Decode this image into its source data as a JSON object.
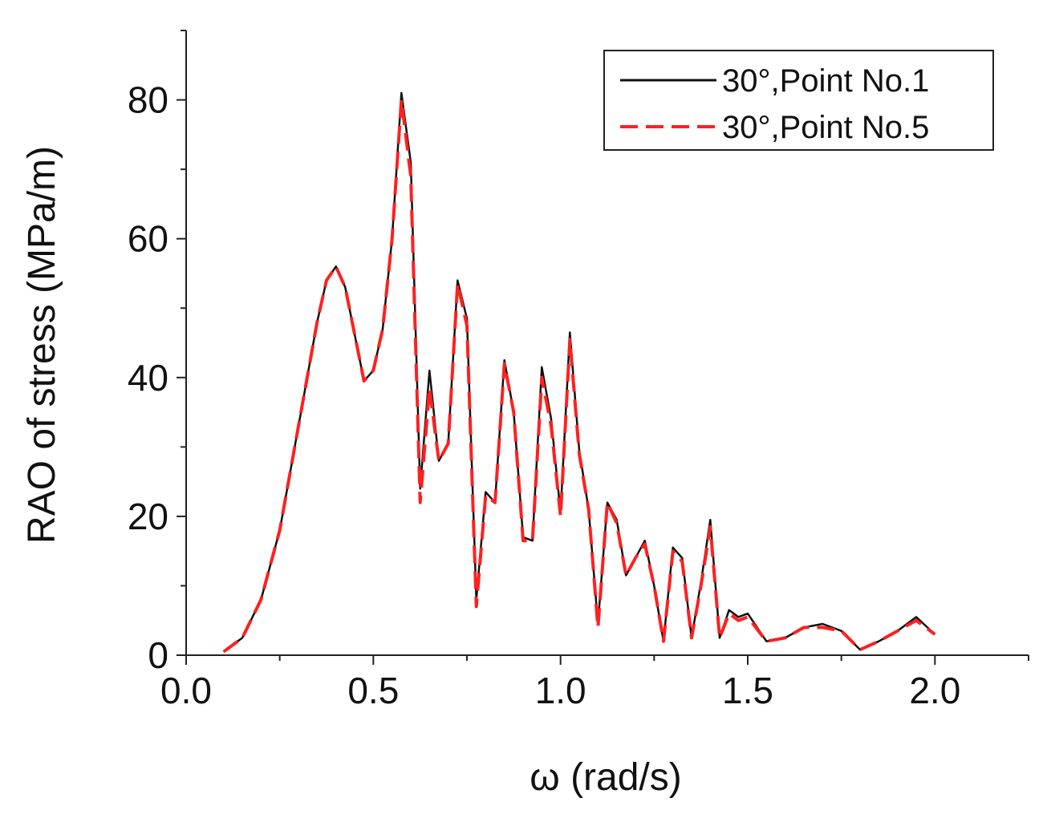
{
  "chart_data": {
    "type": "line",
    "title": "",
    "xlabel": "ω (rad/s)",
    "ylabel": "RAO of stress (MPa/m)",
    "xlim": [
      0,
      2.25
    ],
    "ylim": [
      0,
      90
    ],
    "xticks": [
      0.0,
      0.5,
      1.0,
      1.5,
      2.0
    ],
    "xtick_labels": [
      "0.0",
      "0.5",
      "1.0",
      "1.5",
      "2.0"
    ],
    "yticks": [
      0,
      20,
      40,
      60,
      80
    ],
    "ytick_labels": [
      "0",
      "20",
      "40",
      "60",
      "80"
    ],
    "grid": false,
    "legend_position": "top-right",
    "x": [
      0.1,
      0.15,
      0.2,
      0.25,
      0.3,
      0.35,
      0.375,
      0.4,
      0.425,
      0.475,
      0.5,
      0.525,
      0.55,
      0.575,
      0.6,
      0.625,
      0.65,
      0.675,
      0.7,
      0.725,
      0.75,
      0.775,
      0.8,
      0.825,
      0.85,
      0.875,
      0.9,
      0.925,
      0.95,
      0.975,
      1.0,
      1.025,
      1.05,
      1.075,
      1.1,
      1.125,
      1.15,
      1.175,
      1.2,
      1.225,
      1.25,
      1.275,
      1.3,
      1.325,
      1.35,
      1.375,
      1.4,
      1.425,
      1.45,
      1.475,
      1.5,
      1.55,
      1.6,
      1.65,
      1.7,
      1.75,
      1.8,
      1.85,
      1.9,
      1.95,
      2.0
    ],
    "series": [
      {
        "name": "30°,Point No.1",
        "color": "#111111",
        "style": "solid",
        "values": [
          0.5,
          2.5,
          8,
          18,
          33,
          48,
          54,
          56,
          53,
          39.5,
          41,
          47,
          60,
          81,
          71,
          24,
          41,
          28,
          30.5,
          54,
          48.5,
          8,
          23.5,
          22,
          42.5,
          35,
          17,
          16.5,
          41.5,
          34,
          20.5,
          46.5,
          29.5,
          21,
          4.5,
          22,
          19.5,
          11.5,
          14,
          16.5,
          10,
          2,
          15.5,
          14,
          2.5,
          10.5,
          19.5,
          2.5,
          6.5,
          5.5,
          6,
          2,
          2.5,
          4,
          4.5,
          3.5,
          0.8,
          2,
          3.5,
          5.5,
          3
        ]
      },
      {
        "name": "30°,Point No.5",
        "color": "#ff2020",
        "style": "dashed",
        "values": [
          0.5,
          2.5,
          8,
          18,
          33,
          48,
          54,
          56,
          53,
          39.5,
          41,
          47,
          60,
          80,
          69,
          22,
          38.5,
          28,
          30.5,
          53.5,
          47.5,
          7,
          23,
          22,
          42,
          35,
          16.5,
          16.5,
          40,
          33,
          20,
          45.5,
          29,
          21,
          4,
          22,
          19,
          11.5,
          14,
          16,
          10,
          2,
          15,
          13.5,
          2.5,
          10,
          18.5,
          2.5,
          6,
          5,
          5.5,
          2,
          2.5,
          4,
          4,
          3.5,
          0.8,
          2,
          3.5,
          5,
          3
        ]
      }
    ]
  }
}
